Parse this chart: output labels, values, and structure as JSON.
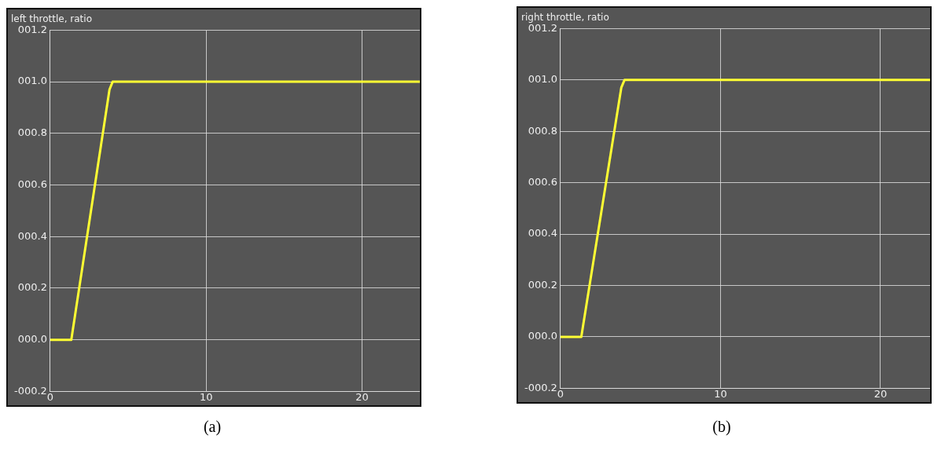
{
  "chart_data": [
    {
      "type": "line",
      "title": "left throttle, ratio",
      "x": [
        0,
        1.35,
        3.8,
        4.0,
        23.7
      ],
      "series": [
        {
          "color": "#ffff33",
          "values": [
            0,
            0,
            0.97,
            1.0,
            1.0
          ]
        }
      ],
      "xlim": [
        0,
        23.7
      ],
      "xticks": [
        0,
        10,
        20
      ],
      "ylim": [
        -0.2,
        1.2
      ],
      "yticks": [
        {
          "value": -0.2,
          "label": "-000.2"
        },
        {
          "value": 0,
          "label": "000.0"
        },
        {
          "value": 0.2,
          "label": "000.2"
        },
        {
          "value": 0.4,
          "label": "000.4"
        },
        {
          "value": 0.6,
          "label": "000.6"
        },
        {
          "value": 0.8,
          "label": "000.8"
        },
        {
          "value": 1.0,
          "label": "001.0"
        },
        {
          "value": 1.2,
          "label": "001.2"
        }
      ],
      "grid": true,
      "legend": false,
      "marker": "none",
      "line_style": "solid",
      "annotations": [
        "(a)"
      ]
    },
    {
      "type": "line",
      "title": "right throttle, ratio",
      "x": [
        0,
        1.3,
        3.8,
        4.0,
        23.1
      ],
      "series": [
        {
          "color": "#ffff33",
          "values": [
            0,
            0,
            0.97,
            1.0,
            1.0
          ]
        }
      ],
      "xlim": [
        0,
        23.1
      ],
      "xticks": [
        0,
        10,
        20
      ],
      "ylim": [
        -0.2,
        1.2
      ],
      "yticks": [
        {
          "value": -0.2,
          "label": "-000.2"
        },
        {
          "value": 0,
          "label": "000.0"
        },
        {
          "value": 0.2,
          "label": "000.2"
        },
        {
          "value": 0.4,
          "label": "000.4"
        },
        {
          "value": 0.6,
          "label": "000.6"
        },
        {
          "value": 0.8,
          "label": "000.8"
        },
        {
          "value": 1.0,
          "label": "001.0"
        },
        {
          "value": 1.2,
          "label": "001.2"
        }
      ],
      "grid": true,
      "legend": false,
      "marker": "none",
      "line_style": "solid",
      "annotations": [
        "(b)"
      ]
    }
  ]
}
